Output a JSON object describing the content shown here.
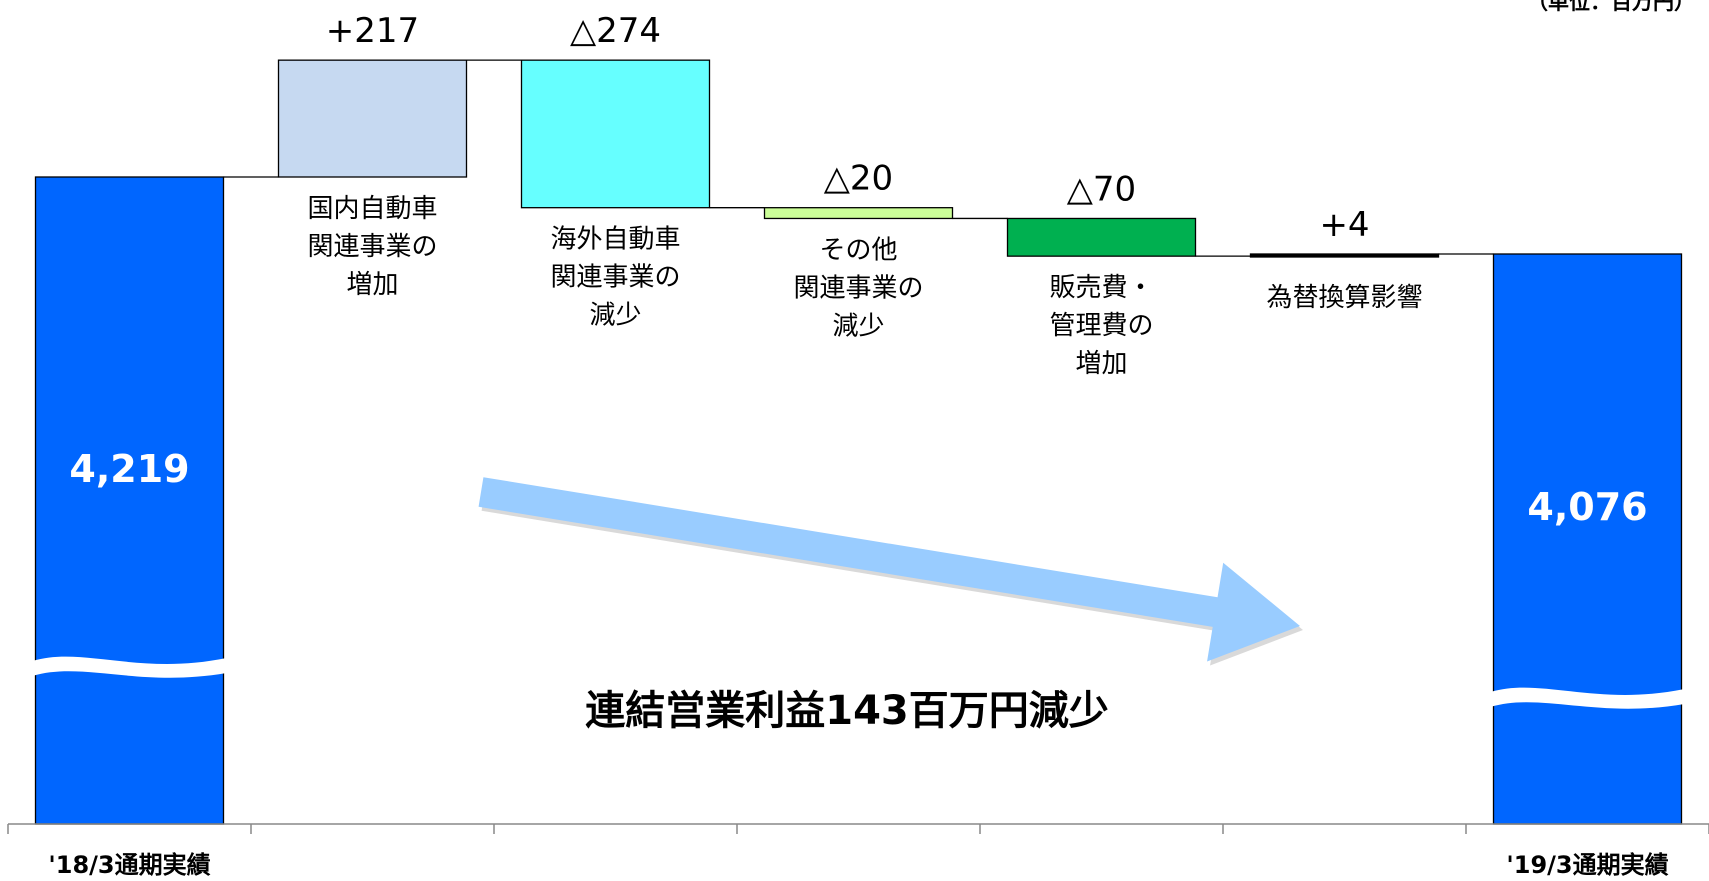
{
  "chart_data": {
    "type": "waterfall",
    "unit_label": "（単位：百万円）",
    "headline": "連結営業利益143百万円減少",
    "axis": {
      "ylim": [
        3800,
        4450
      ],
      "broken": true
    },
    "start": {
      "label": "'18/3通期実績",
      "value": 4219,
      "value_label": "4,219",
      "color": "#0066ff"
    },
    "end": {
      "label": "'19/3通期実績",
      "value": 4076,
      "value_label": "4,076",
      "color": "#0066ff"
    },
    "steps": [
      {
        "label_lines": [
          "国内自動車",
          "関連事業の",
          "増加"
        ],
        "delta": 217,
        "delta_label": "+217",
        "color": "#c6d9f1"
      },
      {
        "label_lines": [
          "海外自動車",
          "関連事業の",
          "減少"
        ],
        "delta": -274,
        "delta_label": "△274",
        "color": "#66ffff"
      },
      {
        "label_lines": [
          "その他",
          "関連事業の",
          "減少"
        ],
        "delta": -20,
        "delta_label": "△20",
        "color": "#ccff99"
      },
      {
        "label_lines": [
          "販売費・",
          "管理費の",
          "増加"
        ],
        "delta": -70,
        "delta_label": "△70",
        "color": "#00b050"
      },
      {
        "label_lines": [
          "為替換算影響"
        ],
        "delta": 4,
        "delta_label": "+4",
        "color": "#000000"
      }
    ],
    "trend_arrow_color": "#99ccff"
  }
}
